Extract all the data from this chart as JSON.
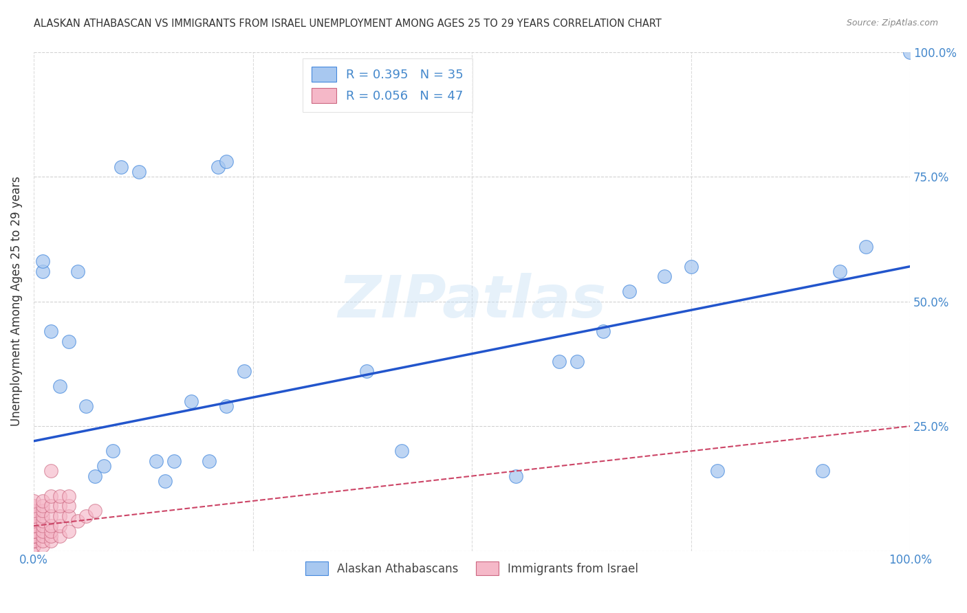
{
  "title": "ALASKAN ATHABASCAN VS IMMIGRANTS FROM ISRAEL UNEMPLOYMENT AMONG AGES 25 TO 29 YEARS CORRELATION CHART",
  "source": "Source: ZipAtlas.com",
  "ylabel": "Unemployment Among Ages 25 to 29 years",
  "xlim": [
    0,
    1
  ],
  "ylim": [
    0,
    1
  ],
  "xticks": [
    0.0,
    0.25,
    0.5,
    0.75,
    1.0
  ],
  "yticks": [
    0.0,
    0.25,
    0.5,
    0.75,
    1.0
  ],
  "xticklabels_show": [
    "0.0%",
    "",
    "",
    "",
    "100.0%"
  ],
  "right_yticklabels": [
    "",
    "25.0%",
    "50.0%",
    "75.0%",
    "100.0%"
  ],
  "blue_R": 0.395,
  "blue_N": 35,
  "pink_R": 0.056,
  "pink_N": 47,
  "blue_color": "#a8c8f0",
  "blue_edge_color": "#4488dd",
  "blue_line_color": "#2255cc",
  "pink_color": "#f5b8c8",
  "pink_edge_color": "#cc6680",
  "pink_line_color": "#cc4466",
  "blue_scatter_x": [
    0.01,
    0.01,
    0.02,
    0.03,
    0.04,
    0.05,
    0.06,
    0.07,
    0.08,
    0.09,
    0.1,
    0.12,
    0.14,
    0.15,
    0.16,
    0.18,
    0.2,
    0.21,
    0.22,
    0.22,
    0.24,
    0.38,
    0.42,
    0.55,
    0.6,
    0.62,
    0.65,
    0.68,
    0.72,
    0.75,
    0.78,
    0.9,
    0.92,
    0.95,
    1.0
  ],
  "blue_scatter_y": [
    0.56,
    0.58,
    0.44,
    0.33,
    0.42,
    0.56,
    0.29,
    0.15,
    0.17,
    0.2,
    0.77,
    0.76,
    0.18,
    0.14,
    0.18,
    0.3,
    0.18,
    0.77,
    0.78,
    0.29,
    0.36,
    0.36,
    0.2,
    0.15,
    0.38,
    0.38,
    0.44,
    0.52,
    0.55,
    0.57,
    0.16,
    0.16,
    0.56,
    0.61,
    1.0
  ],
  "pink_scatter_x": [
    0.0,
    0.0,
    0.0,
    0.0,
    0.0,
    0.0,
    0.0,
    0.0,
    0.0,
    0.0,
    0.0,
    0.0,
    0.0,
    0.0,
    0.0,
    0.0,
    0.0,
    0.01,
    0.01,
    0.01,
    0.01,
    0.01,
    0.01,
    0.01,
    0.01,
    0.01,
    0.01,
    0.02,
    0.02,
    0.02,
    0.02,
    0.02,
    0.02,
    0.02,
    0.02,
    0.03,
    0.03,
    0.03,
    0.03,
    0.03,
    0.04,
    0.04,
    0.04,
    0.04,
    0.05,
    0.06,
    0.07
  ],
  "pink_scatter_y": [
    0.01,
    0.01,
    0.02,
    0.02,
    0.02,
    0.03,
    0.03,
    0.03,
    0.04,
    0.04,
    0.05,
    0.05,
    0.06,
    0.07,
    0.08,
    0.09,
    0.1,
    0.01,
    0.02,
    0.03,
    0.04,
    0.05,
    0.06,
    0.07,
    0.08,
    0.09,
    0.1,
    0.02,
    0.03,
    0.04,
    0.05,
    0.07,
    0.09,
    0.11,
    0.16,
    0.03,
    0.05,
    0.07,
    0.09,
    0.11,
    0.04,
    0.07,
    0.09,
    0.11,
    0.06,
    0.07,
    0.08
  ],
  "blue_line_x0": 0.0,
  "blue_line_y0": 0.22,
  "blue_line_x1": 1.0,
  "blue_line_y1": 0.57,
  "pink_line_x0": 0.0,
  "pink_line_y0": 0.05,
  "pink_line_x1": 1.0,
  "pink_line_y1": 0.25,
  "watermark": "ZIPatlas",
  "legend_label_blue": "Alaskan Athabascans",
  "legend_label_pink": "Immigrants from Israel",
  "background_color": "#ffffff",
  "grid_color": "#cccccc",
  "title_color": "#333333",
  "axis_label_color": "#333333",
  "tick_color": "#4488cc"
}
